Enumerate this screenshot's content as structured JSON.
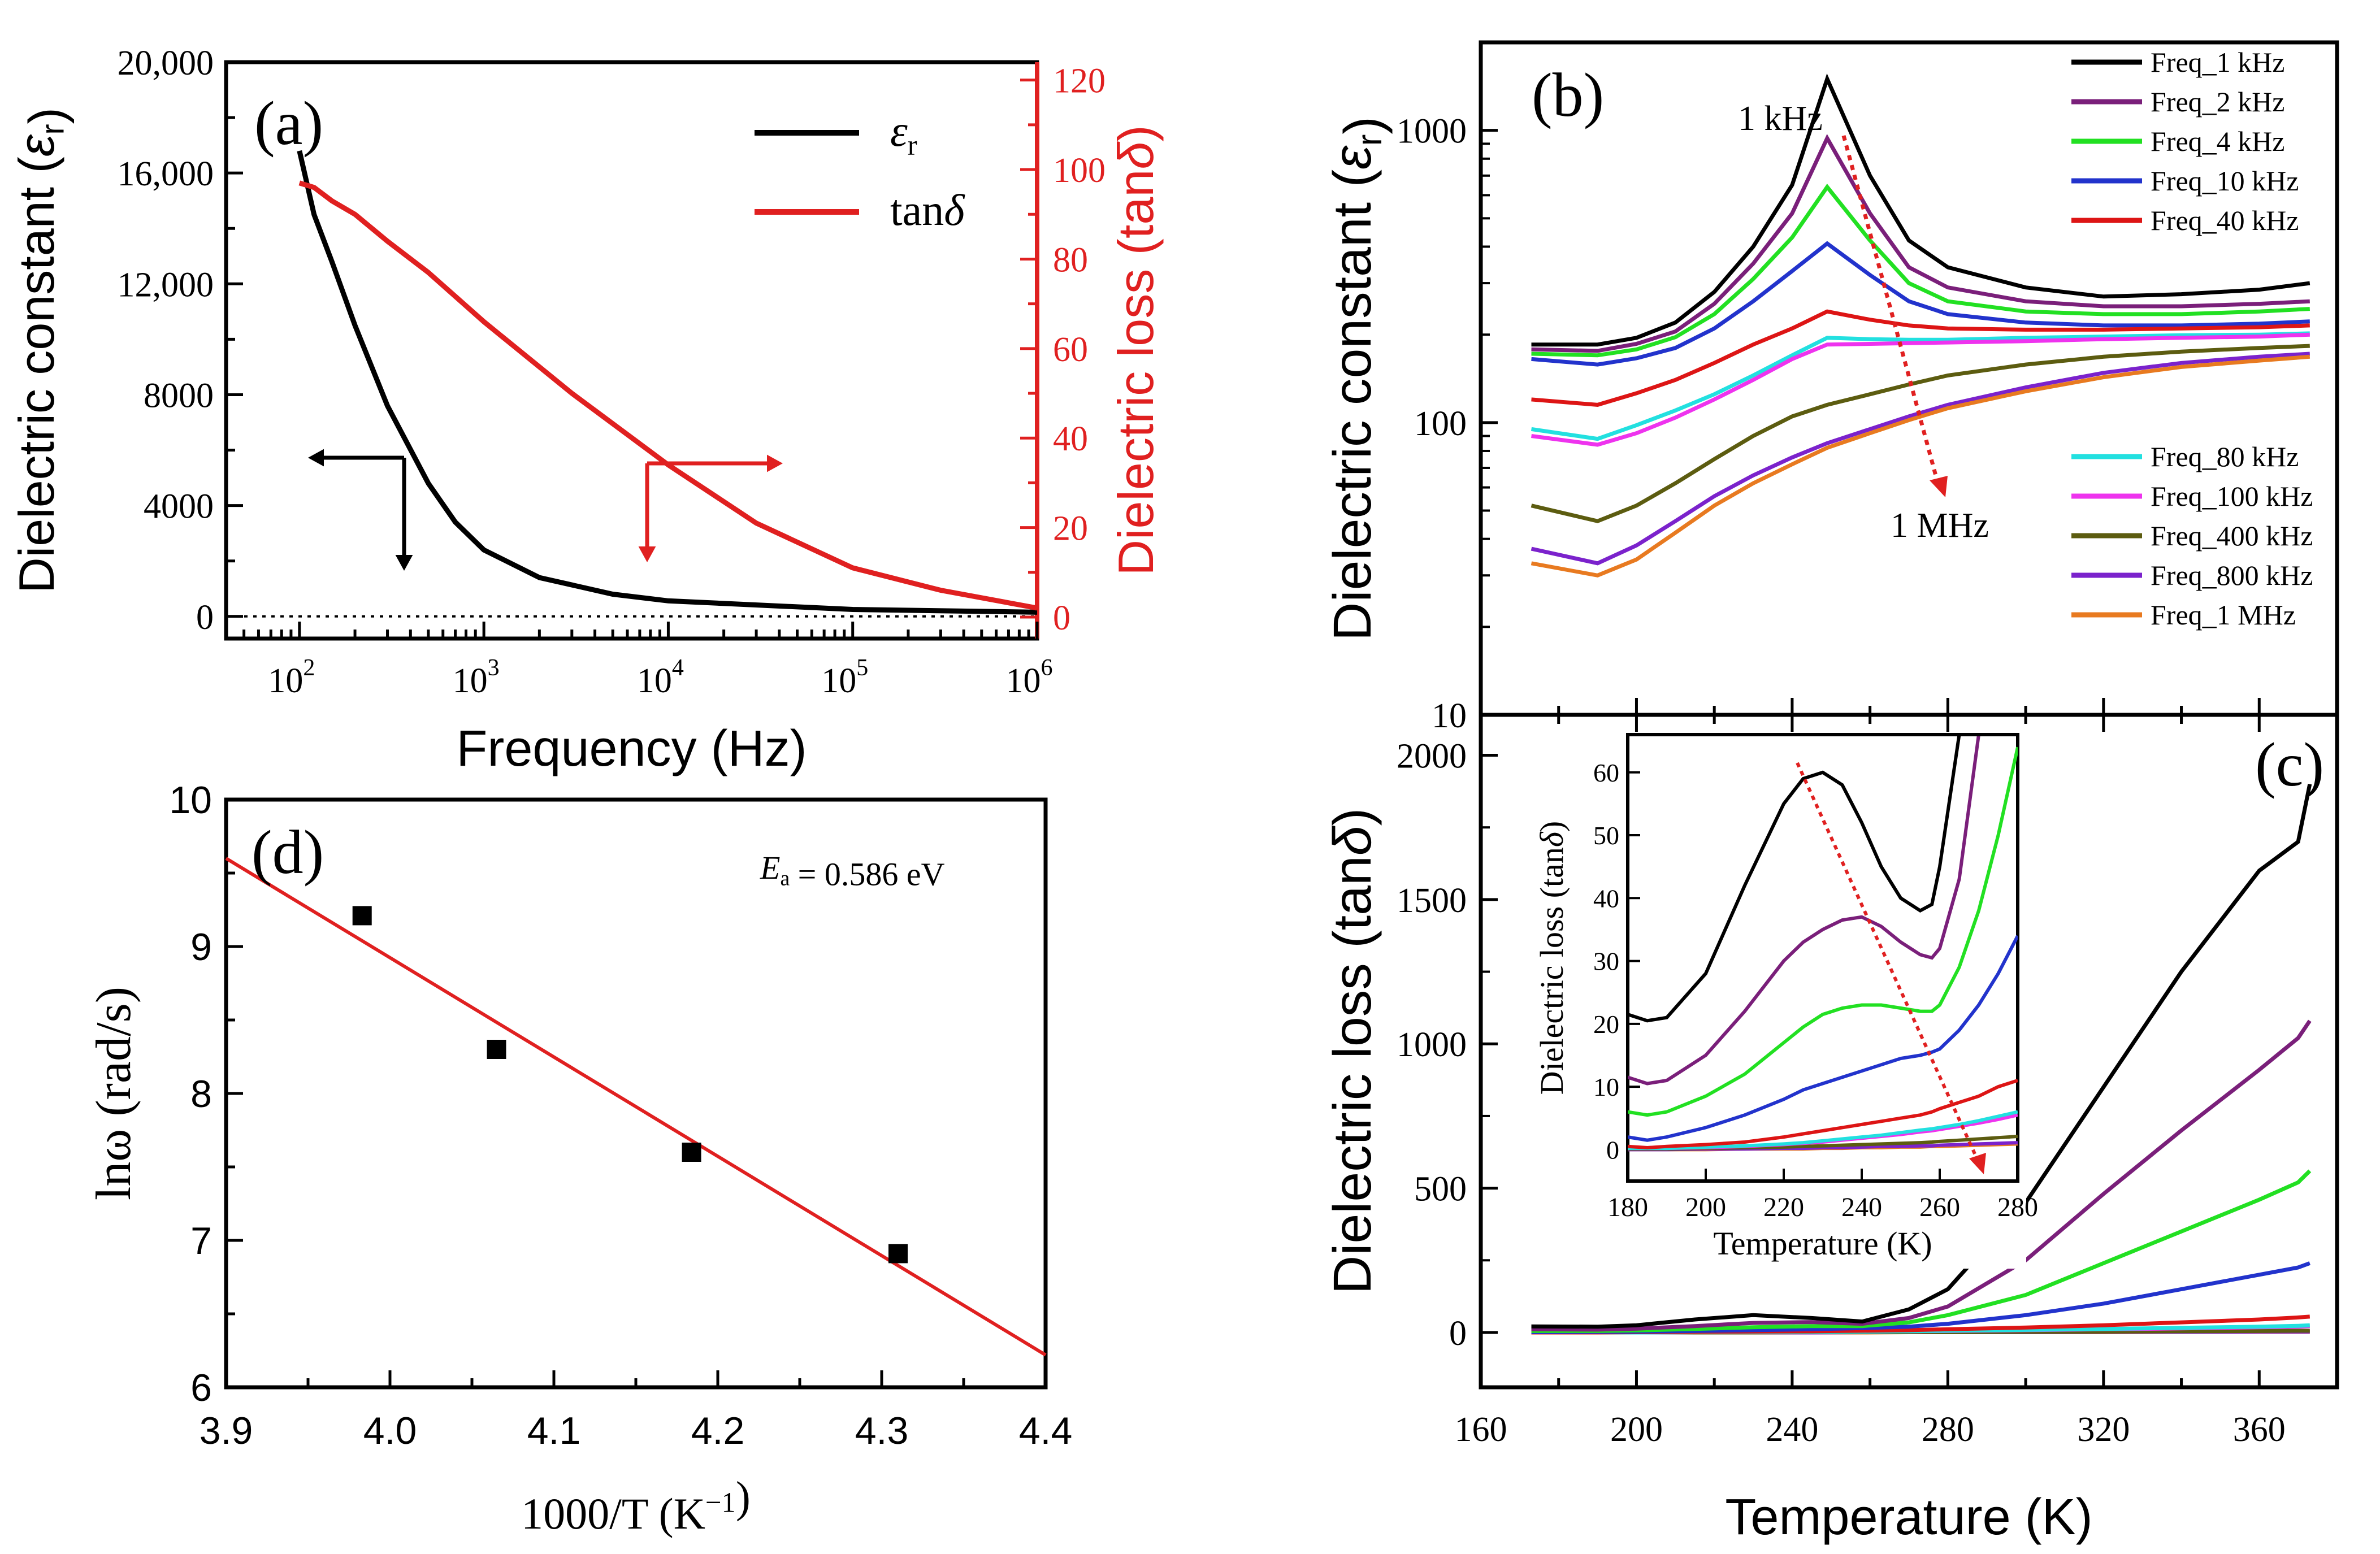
{
  "figure": {
    "panel_a": {
      "label": "(a)"
    },
    "panel_b": {
      "label": "(b)",
      "arrow_start_label": "1 kHz",
      "arrow_end_label": "1 MHz"
    },
    "panel_c": {
      "label": "(c)"
    },
    "panel_d": {
      "label": "(d)",
      "annotation": "E_a = 0.586 eV"
    },
    "colors": {
      "black": "#000000",
      "red": "#e02020",
      "purple": "#7a1f7a",
      "green": "#22e022",
      "blue": "#2233cc",
      "darkred": "#dd1515",
      "cyan": "#22e0e0",
      "magenta": "#ee33ee",
      "olive": "#5c5c10",
      "violet": "#7b22cc",
      "orange": "#e87a20"
    }
  },
  "chart_data": [
    {
      "panel": "a",
      "type": "line",
      "title": "",
      "xlabel": "Frequency (Hz)",
      "xscale": "log",
      "xlim": [
        40,
        1000000
      ],
      "xticks": [
        100,
        1000,
        10000,
        100000,
        1000000
      ],
      "xtick_labels": [
        "10^2",
        "10^3",
        "10^4",
        "10^5",
        "10^6"
      ],
      "ylabel": "Dielectric constant (ε_r)",
      "ylim": [
        -800,
        20000
      ],
      "yticks": [
        0,
        4000,
        8000,
        12000,
        16000,
        20000
      ],
      "ytick_labels": [
        "0",
        "4000",
        "8000",
        "12,000",
        "16,000",
        "20,000"
      ],
      "y2label": "Dielectric loss (tanδ)",
      "y2lim": [
        -4.8,
        124
      ],
      "y2ticks": [
        0,
        20,
        40,
        60,
        80,
        100,
        120
      ],
      "y2tick_labels": [
        "0",
        "20",
        "40",
        "60",
        "80",
        "100",
        "120"
      ],
      "legend": {
        "position": "top-right",
        "entries": [
          "ε_r",
          "tanδ"
        ]
      },
      "series": [
        {
          "name": "ε_r",
          "axis": "left",
          "color": "#000000",
          "x": [
            100,
            120,
            150,
            200,
            300,
            500,
            700,
            1000,
            2000,
            5000,
            10000,
            100000,
            1000000
          ],
          "y": [
            16800,
            14500,
            12800,
            10500,
            7600,
            4800,
            3400,
            2400,
            1400,
            800,
            560,
            250,
            150
          ]
        },
        {
          "name": "tanδ",
          "axis": "right",
          "color": "#e02020",
          "x": [
            100,
            120,
            150,
            200,
            300,
            500,
            1000,
            3000,
            10000,
            30000,
            100000,
            300000,
            1000000
          ],
          "y": [
            97,
            96,
            93,
            90,
            84,
            77,
            66,
            50,
            34,
            21,
            11,
            6,
            2
          ]
        }
      ]
    },
    {
      "panel": "b",
      "type": "line",
      "xlabel": "",
      "xlim": [
        160,
        380
      ],
      "ylabel": "Dielectric constant (ε_r)",
      "yscale": "log",
      "ylim": [
        10,
        2000
      ],
      "yticks": [
        10,
        100,
        1000
      ],
      "ytick_labels": [
        "10",
        "100",
        "1000"
      ],
      "legend": {
        "position": "top-right and middle-right"
      },
      "x": [
        173,
        190,
        200,
        210,
        220,
        230,
        240,
        249,
        260,
        270,
        280,
        300,
        320,
        340,
        360,
        373
      ],
      "series": [
        {
          "name": "Freq_1 kHz",
          "color": "#000000",
          "values": [
            185,
            185,
            195,
            220,
            280,
            400,
            650,
            1500,
            700,
            420,
            340,
            290,
            270,
            275,
            285,
            300
          ]
        },
        {
          "name": "Freq_2 kHz",
          "color": "#7a1f7a",
          "values": [
            178,
            176,
            186,
            205,
            255,
            350,
            520,
            940,
            520,
            340,
            290,
            260,
            250,
            250,
            255,
            260
          ]
        },
        {
          "name": "Freq_4 kHz",
          "color": "#22e022",
          "values": [
            172,
            170,
            178,
            196,
            235,
            310,
            430,
            640,
            420,
            300,
            260,
            240,
            235,
            235,
            240,
            245
          ]
        },
        {
          "name": "Freq_10 kHz",
          "color": "#2233cc",
          "values": [
            165,
            158,
            166,
            180,
            210,
            260,
            330,
            410,
            320,
            260,
            235,
            220,
            215,
            215,
            218,
            222
          ]
        },
        {
          "name": "Freq_40 kHz",
          "color": "#dd1515",
          "values": [
            120,
            115,
            126,
            140,
            160,
            185,
            210,
            240,
            225,
            215,
            210,
            208,
            208,
            210,
            212,
            215
          ]
        },
        {
          "name": "Freq_80 kHz",
          "color": "#22e0e0",
          "values": [
            95,
            88,
            98,
            110,
            125,
            145,
            170,
            195,
            193,
            192,
            192,
            195,
            197,
            199,
            200,
            202
          ]
        },
        {
          "name": "Freq_100 kHz",
          "color": "#ee33ee",
          "values": [
            90,
            84,
            92,
            104,
            120,
            140,
            165,
            185,
            186,
            187,
            188,
            190,
            193,
            195,
            197,
            200
          ]
        },
        {
          "name": "Freq_400 kHz",
          "color": "#5c5c10",
          "values": [
            52,
            46,
            52,
            62,
            75,
            90,
            105,
            115,
            125,
            135,
            145,
            158,
            168,
            175,
            180,
            183
          ]
        },
        {
          "name": "Freq_800 kHz",
          "color": "#7b22cc",
          "values": [
            37,
            33,
            38,
            46,
            56,
            66,
            76,
            85,
            95,
            105,
            115,
            132,
            148,
            160,
            168,
            172
          ]
        },
        {
          "name": "Freq_1 MHz",
          "color": "#e87a20",
          "values": [
            33,
            30,
            34,
            42,
            52,
            62,
            72,
            82,
            92,
            102,
            112,
            128,
            143,
            155,
            163,
            168
          ]
        }
      ]
    },
    {
      "panel": "c",
      "type": "line",
      "xlabel": "Temperature (K)",
      "xlim": [
        160,
        380
      ],
      "xticks": [
        160,
        200,
        240,
        280,
        320,
        360
      ],
      "xtick_labels": [
        "160",
        "200",
        "240",
        "280",
        "320",
        "360"
      ],
      "ylabel": "Dielectric loss (tanδ)",
      "ylim": [
        -190,
        2140
      ],
      "yticks": [
        0,
        500,
        1000,
        1500,
        2000
      ],
      "ytick_labels": [
        "0",
        "500",
        "1000",
        "1500",
        "2000"
      ],
      "x": [
        173,
        190,
        200,
        215,
        230,
        245,
        258,
        270,
        280,
        300,
        320,
        340,
        360,
        370,
        373
      ],
      "series": [
        {
          "name": "Freq_1 kHz",
          "color": "#000000",
          "values": [
            21,
            20,
            25,
            45,
            60,
            50,
            38,
            80,
            150,
            450,
            850,
            1250,
            1600,
            1700,
            1900
          ]
        },
        {
          "name": "Freq_2 kHz",
          "color": "#7a1f7a",
          "values": [
            11,
            10,
            13,
            22,
            33,
            36,
            30,
            50,
            90,
            250,
            480,
            700,
            910,
            1020,
            1080
          ]
        },
        {
          "name": "Freq_4 kHz",
          "color": "#22e022",
          "values": [
            5,
            5,
            7,
            12,
            18,
            22,
            22,
            35,
            60,
            130,
            240,
            350,
            460,
            520,
            560
          ]
        },
        {
          "name": "Freq_10 kHz",
          "color": "#2233cc",
          "values": [
            1,
            2,
            3,
            5,
            8,
            11,
            15,
            20,
            30,
            60,
            100,
            150,
            200,
            225,
            240
          ]
        },
        {
          "name": "Freq_40 kHz",
          "color": "#dd1515",
          "values": [
            0,
            0,
            1,
            2,
            3,
            4,
            6,
            8,
            11,
            17,
            25,
            35,
            45,
            52,
            55
          ]
        },
        {
          "name": "Freq_80 kHz",
          "color": "#22e0e0",
          "values": [
            0,
            0,
            0,
            1,
            1,
            2,
            3,
            4,
            6,
            9,
            12,
            16,
            20,
            23,
            25
          ]
        },
        {
          "name": "Freq_100 kHz",
          "color": "#ee33ee",
          "values": [
            0,
            0,
            0,
            1,
            1,
            2,
            3,
            4,
            5,
            8,
            11,
            14,
            18,
            20,
            22
          ]
        },
        {
          "name": "Freq_400 kHz",
          "color": "#5c5c10",
          "values": [
            0,
            0,
            0,
            0,
            0,
            1,
            1,
            1,
            1,
            2,
            3,
            4,
            5,
            6,
            6
          ]
        },
        {
          "name": "Freq_800 kHz",
          "color": "#7b22cc",
          "values": [
            0,
            0,
            0,
            0,
            0,
            0,
            1,
            1,
            1,
            1,
            2,
            2,
            3,
            3,
            3
          ]
        },
        {
          "name": "Freq_1 MHz",
          "color": "#e87a20",
          "values": [
            0,
            0,
            0,
            0,
            0,
            0,
            0,
            1,
            1,
            1,
            1,
            2,
            2,
            2,
            2
          ]
        }
      ]
    },
    {
      "panel": "c-inset",
      "type": "line",
      "xlabel": "Temperature (K)",
      "xlim": [
        180,
        280
      ],
      "xticks": [
        180,
        200,
        220,
        240,
        260,
        280
      ],
      "xtick_labels": [
        "180",
        "200",
        "220",
        "240",
        "260",
        "280"
      ],
      "ylabel": "Dielectric loss (tanδ)",
      "ylim": [
        -5,
        66
      ],
      "yticks": [
        0,
        10,
        20,
        30,
        40,
        50,
        60
      ],
      "ytick_labels": [
        "0",
        "10",
        "20",
        "30",
        "40",
        "50",
        "60"
      ],
      "x": [
        180,
        185,
        190,
        200,
        210,
        220,
        225,
        230,
        235,
        240,
        245,
        250,
        255,
        258,
        260,
        265,
        270,
        275,
        280
      ],
      "series": [
        {
          "name": "Freq_1 kHz",
          "color": "#000000",
          "values": [
            21.5,
            20.5,
            21,
            28,
            42,
            55,
            59,
            60,
            58,
            52,
            45,
            40,
            38,
            39,
            45,
            66,
            66,
            66,
            66
          ]
        },
        {
          "name": "Freq_2 kHz",
          "color": "#7a1f7a",
          "values": [
            11.5,
            10.5,
            11,
            15,
            22,
            30,
            33,
            35,
            36.5,
            37,
            35.5,
            33,
            31,
            30.5,
            32,
            43,
            66,
            66,
            66
          ]
        },
        {
          "name": "Freq_4 kHz",
          "color": "#22e022",
          "values": [
            6,
            5.5,
            6,
            8.5,
            12,
            17,
            19.5,
            21.5,
            22.5,
            23,
            23,
            22.5,
            22,
            22,
            23,
            29,
            38,
            50,
            64
          ]
        },
        {
          "name": "Freq_10 kHz",
          "color": "#2233cc",
          "values": [
            2,
            1.5,
            2,
            3.5,
            5.5,
            8,
            9.5,
            10.5,
            11.5,
            12.5,
            13.5,
            14.5,
            15,
            15.5,
            16,
            19,
            23,
            28,
            34
          ]
        },
        {
          "name": "Freq_40 kHz",
          "color": "#dd1515",
          "values": [
            0.5,
            0.3,
            0.5,
            0.8,
            1.2,
            2,
            2.5,
            3,
            3.5,
            4,
            4.5,
            5,
            5.5,
            6,
            6.5,
            7.5,
            8.5,
            10,
            11
          ]
        },
        {
          "name": "Freq_80 kHz",
          "color": "#22e0e0",
          "values": [
            0.2,
            0.2,
            0.2,
            0.4,
            0.6,
            0.9,
            1.1,
            1.4,
            1.7,
            2,
            2.3,
            2.7,
            3.1,
            3.3,
            3.5,
            4,
            4.6,
            5.3,
            6
          ]
        },
        {
          "name": "Freq_100 kHz",
          "color": "#ee33ee",
          "values": [
            0.2,
            0.2,
            0.2,
            0.3,
            0.5,
            0.8,
            1,
            1.2,
            1.5,
            1.8,
            2.1,
            2.4,
            2.8,
            3,
            3.2,
            3.7,
            4.2,
            4.8,
            5.5
          ]
        },
        {
          "name": "Freq_400 kHz",
          "color": "#5c5c10",
          "values": [
            0.1,
            0.1,
            0.1,
            0.2,
            0.3,
            0.4,
            0.5,
            0.6,
            0.7,
            0.8,
            0.9,
            1,
            1.1,
            1.2,
            1.3,
            1.5,
            1.7,
            1.9,
            2.1
          ]
        },
        {
          "name": "Freq_800 kHz",
          "color": "#7b22cc",
          "values": [
            0,
            0,
            0,
            0.1,
            0.1,
            0.2,
            0.2,
            0.3,
            0.3,
            0.4,
            0.5,
            0.5,
            0.6,
            0.6,
            0.7,
            0.8,
            0.9,
            1,
            1.1
          ]
        },
        {
          "name": "Freq_1 MHz",
          "color": "#e87a20",
          "values": [
            0,
            0,
            0,
            0,
            0.1,
            0.1,
            0.1,
            0.2,
            0.2,
            0.3,
            0.3,
            0.4,
            0.4,
            0.5,
            0.5,
            0.6,
            0.7,
            0.8,
            0.9
          ]
        }
      ]
    },
    {
      "panel": "d",
      "type": "scatter",
      "xlabel": "1000/T (K⁻¹)",
      "xlim": [
        3.9,
        4.4
      ],
      "xticks": [
        3.9,
        4.0,
        4.1,
        4.2,
        4.3,
        4.4
      ],
      "xtick_labels": [
        "3.9",
        "4.0",
        "4.1",
        "4.2",
        "4.3",
        "4.4"
      ],
      "ylabel": "lnω (rad/s)",
      "ylim": [
        6,
        10
      ],
      "yticks": [
        6,
        7,
        8,
        9,
        10
      ],
      "ytick_labels": [
        "6",
        "7",
        "8",
        "9",
        "10"
      ],
      "points": {
        "x": [
          3.983,
          4.065,
          4.184,
          4.31
        ],
        "y": [
          9.21,
          8.3,
          7.6,
          6.91
        ]
      },
      "fit_line": {
        "x": [
          3.9,
          4.4
        ],
        "y": [
          9.6,
          6.22
        ],
        "color": "#e02020"
      }
    }
  ]
}
